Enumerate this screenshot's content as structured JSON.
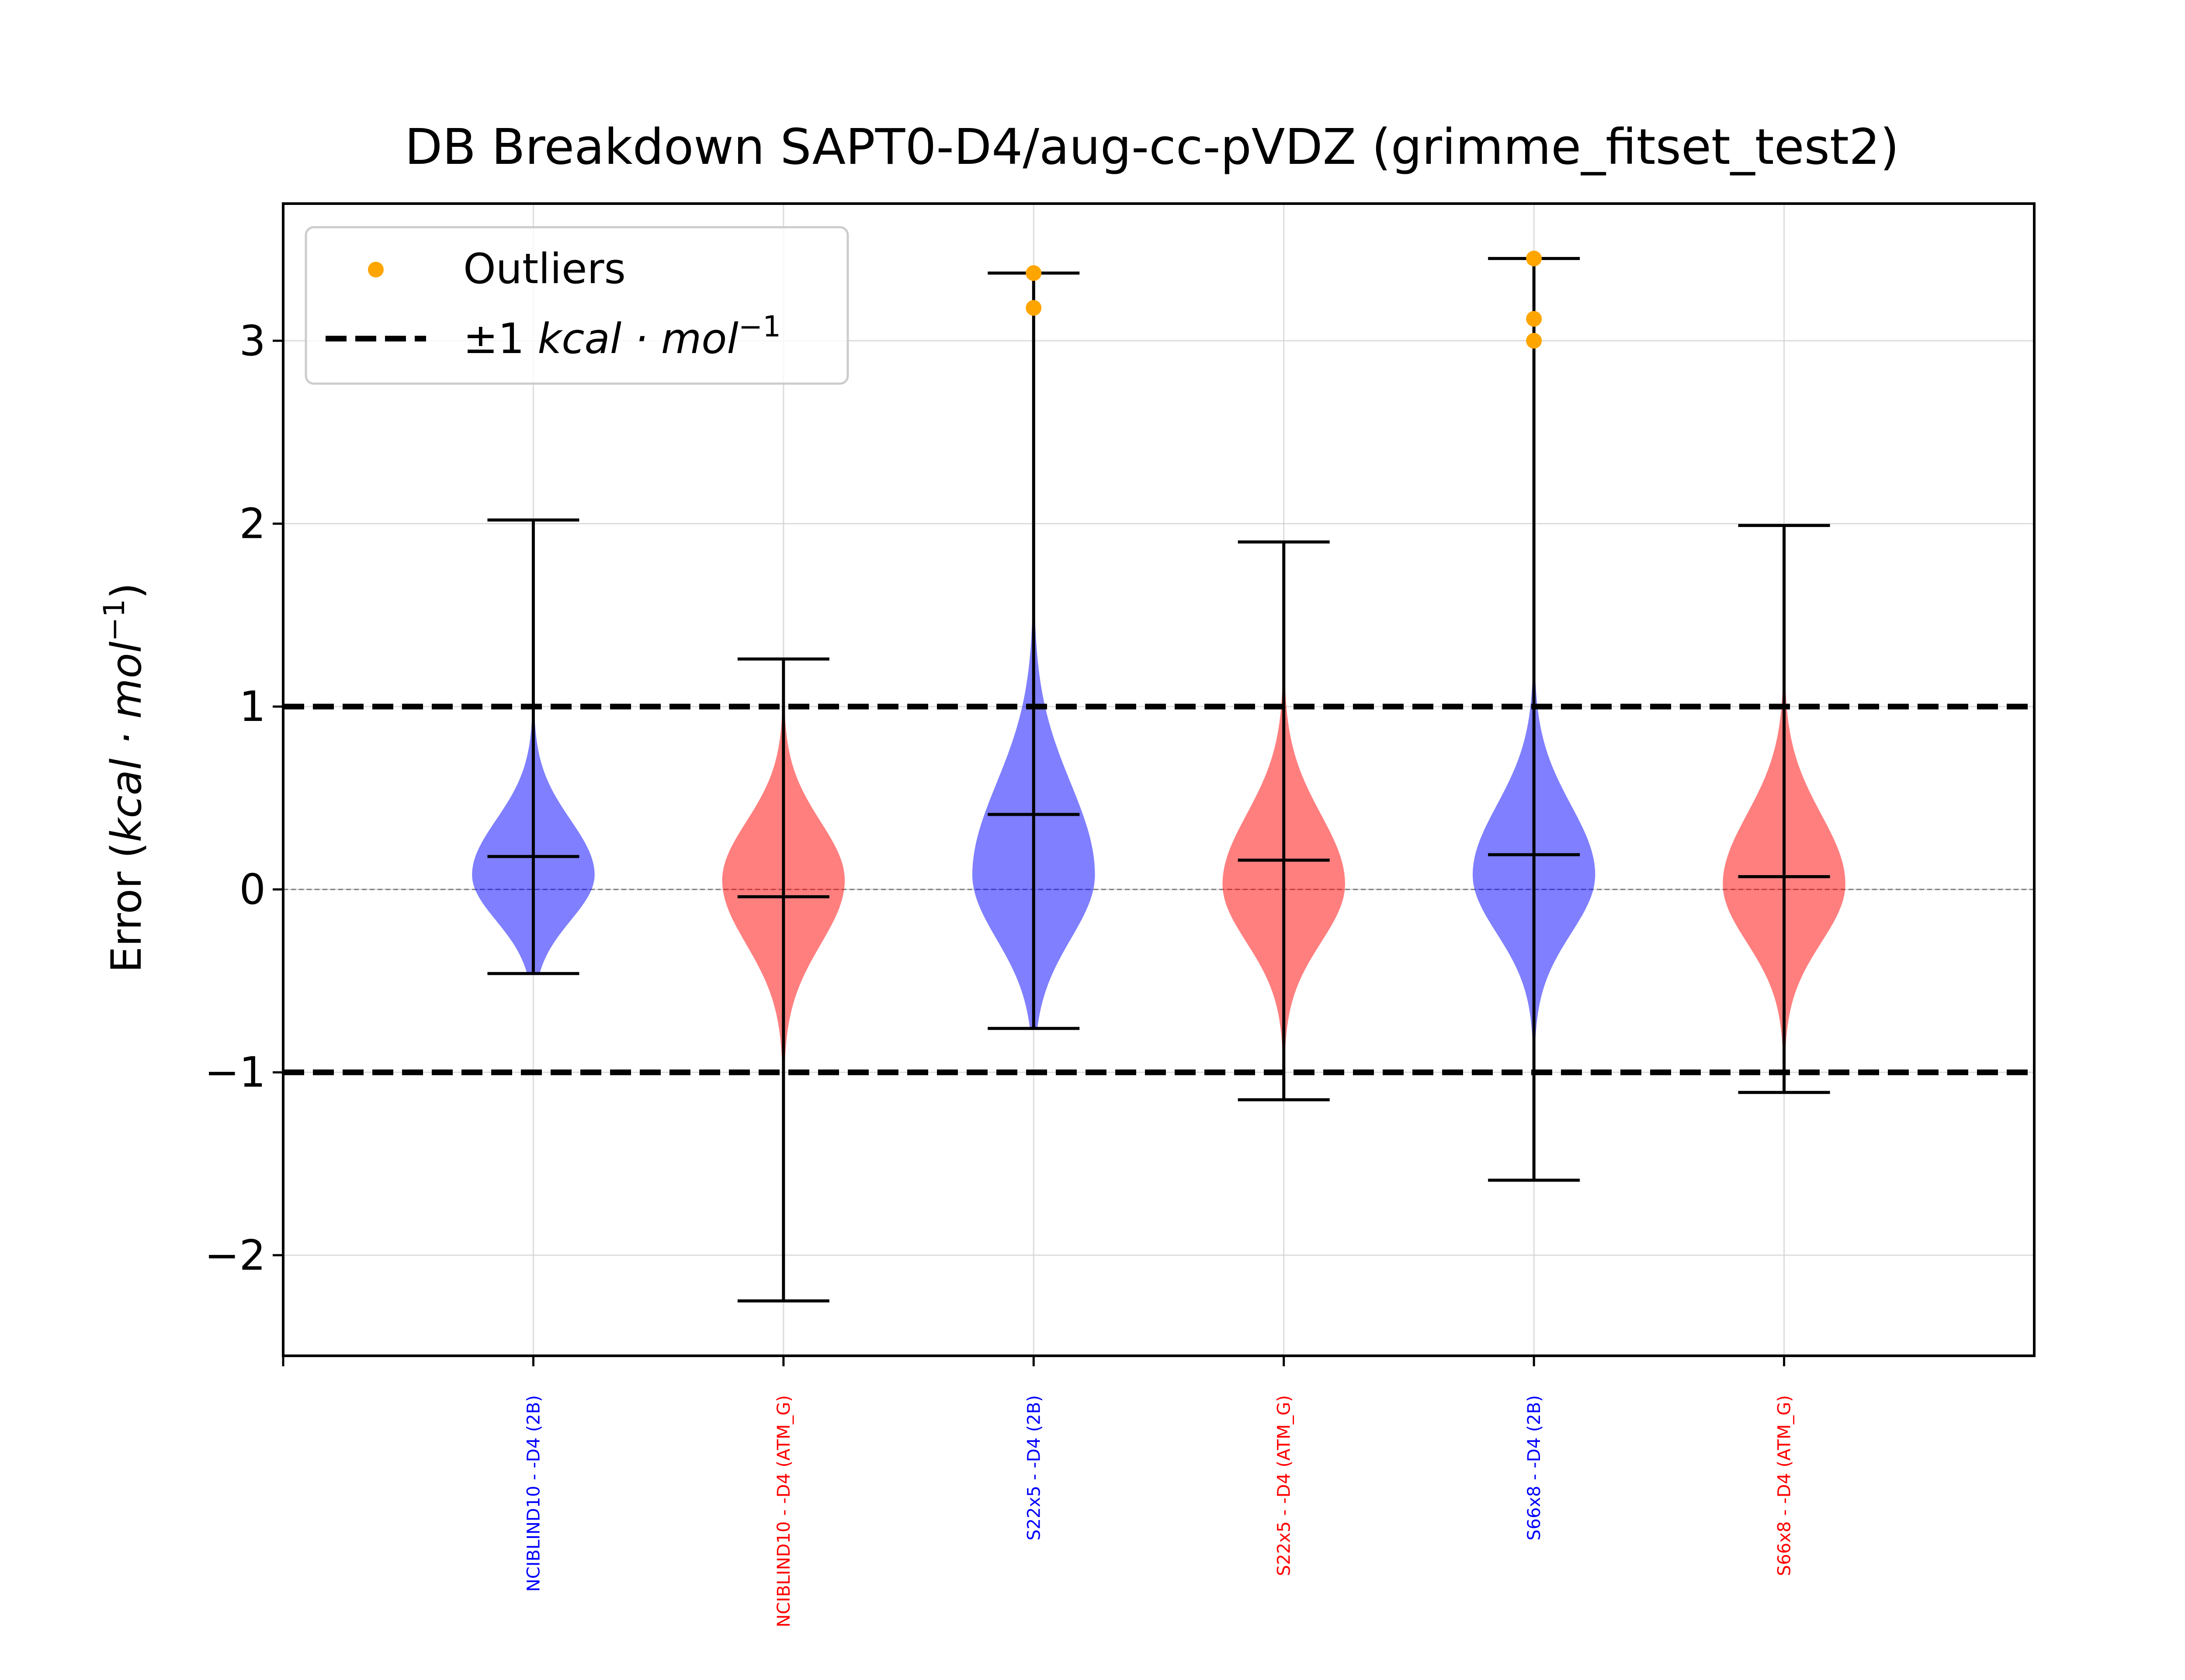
{
  "chart_data": {
    "type": "violin",
    "title": "DB Breakdown SAPT0-D4/aug-cc-pVDZ (grimme_fitset_test2)",
    "ylabel_text": "Error (",
    "ylabel_math": "kcal · mol",
    "ylabel_sup": "−1",
    "ylabel_close": ")",
    "ylim": [
      -2.55,
      3.75
    ],
    "yticks": [
      -2,
      -1,
      0,
      1,
      2,
      3
    ],
    "ytick_labels": [
      "−2",
      "−1",
      "0",
      "1",
      "2",
      "3"
    ],
    "grid": true,
    "reference_lines": [
      -1,
      1
    ],
    "zero_line": 0,
    "legend": {
      "placement": "upper-left",
      "outliers_label": "Outliers",
      "lines_label_prefix": "±1 ",
      "lines_label_math": "kcal · mol",
      "lines_label_sup": "−1"
    },
    "colors": {
      "blue": "#0000ff",
      "red": "#ff0000",
      "outlier": "#ffa500",
      "reference": "#000000",
      "grid": "#d3d3d3"
    },
    "series": [
      {
        "label": "NCIBLIND10 - -D4 (2B)",
        "color": "blue",
        "min": -0.46,
        "max": 2.02,
        "mean": 0.18,
        "mode": 0.08,
        "width": 0.245,
        "sd_low": 0.25,
        "sd_high": 0.3,
        "outliers": []
      },
      {
        "label": "NCIBLIND10 - -D4 (ATM_G)",
        "color": "red",
        "min": -2.25,
        "max": 1.26,
        "mean": -0.04,
        "mode": 0.05,
        "width": 0.245,
        "sd_low": 0.35,
        "sd_high": 0.32,
        "outliers": []
      },
      {
        "label": "S22x5 - -D4 (2B)",
        "color": "blue",
        "min": -0.76,
        "max": 3.37,
        "mean": 0.41,
        "mode": 0.08,
        "width": 0.245,
        "sd_low": 0.35,
        "sd_high": 0.5,
        "outliers": [
          3.37,
          3.18
        ]
      },
      {
        "label": "S22x5 - -D4 (ATM_G)",
        "color": "red",
        "min": -1.15,
        "max": 1.9,
        "mean": 0.16,
        "mode": 0.03,
        "width": 0.245,
        "sd_low": 0.32,
        "sd_high": 0.38,
        "outliers": []
      },
      {
        "label": "S66x8 - -D4 (2B)",
        "color": "blue",
        "min": -1.59,
        "max": 3.45,
        "mean": 0.19,
        "mode": 0.08,
        "width": 0.245,
        "sd_low": 0.32,
        "sd_high": 0.38,
        "outliers": [
          3.45,
          3.12,
          3.0
        ]
      },
      {
        "label": "S66x8 - -D4 (ATM_G)",
        "color": "red",
        "min": -1.11,
        "max": 1.99,
        "mean": 0.07,
        "mode": 0.03,
        "width": 0.245,
        "sd_low": 0.32,
        "sd_high": 0.38,
        "outliers": []
      }
    ]
  }
}
